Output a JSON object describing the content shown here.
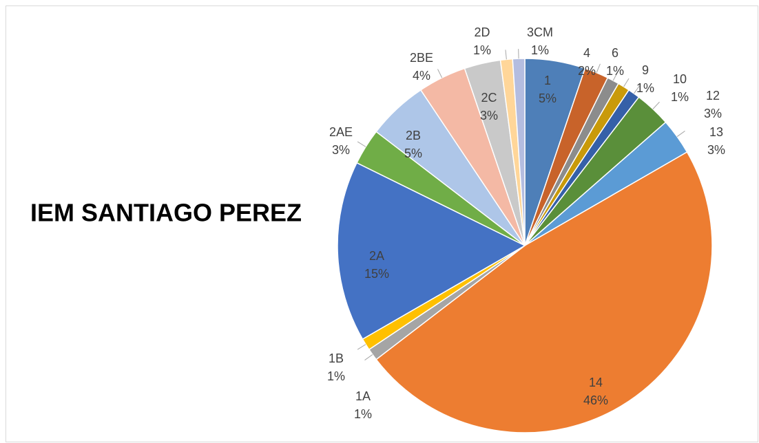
{
  "chart_data": {
    "type": "pie",
    "title": "IEM SANTIAGO PEREZ",
    "categories": [
      "1",
      "4",
      "6",
      "9",
      "10",
      "12",
      "13",
      "14",
      "1A",
      "1B",
      "2A",
      "2AE",
      "2B",
      "2BE",
      "2C",
      "2D",
      "3CM"
    ],
    "values": [
      5,
      2,
      1,
      1,
      1,
      3,
      3,
      46,
      1,
      1,
      15,
      3,
      5,
      4,
      3,
      1,
      1
    ],
    "value_labels": [
      "5%",
      "2%",
      "1%",
      "1%",
      "1%",
      "3%",
      "3%",
      "46%",
      "1%",
      "1%",
      "15%",
      "3%",
      "5%",
      "4%",
      "3%",
      "1%",
      "1%"
    ],
    "colors": [
      "#4e7fb8",
      "#c8632a",
      "#8c8c8c",
      "#c99a0a",
      "#3560a8",
      "#5a8f3a",
      "#5b9bd5",
      "#ed7d31",
      "#a5a5a5",
      "#ffc000",
      "#4472c4",
      "#70ad47",
      "#aec6e8",
      "#f4b9a5",
      "#c9c9c9",
      "#ffd699",
      "#b4bde0"
    ]
  }
}
